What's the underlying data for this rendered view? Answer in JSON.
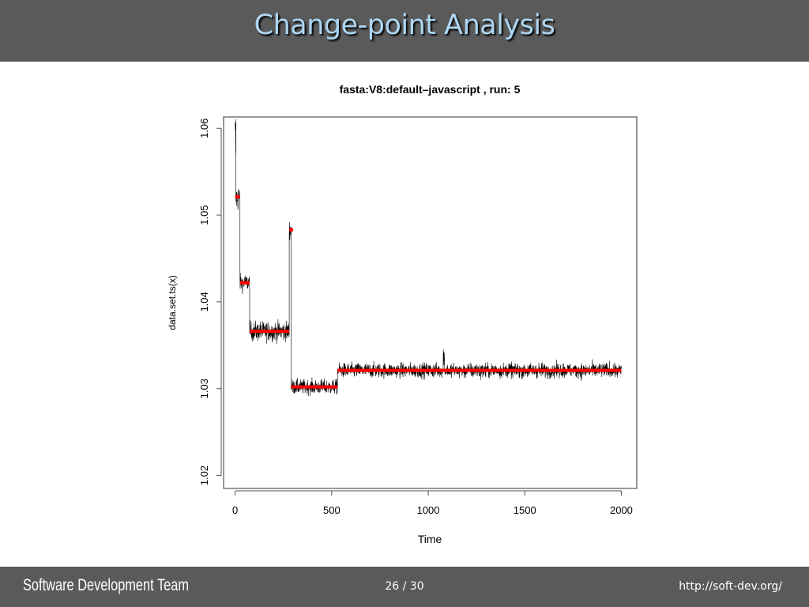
{
  "slide": {
    "title": "Change-point Analysis"
  },
  "footer": {
    "team": "Software Development Team",
    "page": "26 / 30",
    "url": "http://soft-dev.org/"
  },
  "colors": {
    "bar": "#5a5a5a",
    "title": "#aed6f1",
    "series": "#000000",
    "changepoint_means": "#ff0000"
  },
  "chart_data": {
    "type": "line",
    "title": "fasta:V8:default–javascript , run: 5",
    "xlabel": "Time",
    "ylabel": "data.set.ts(x)",
    "xlim": [
      -60,
      2080
    ],
    "ylim": [
      1.0185,
      1.0613
    ],
    "x_ticks": [
      0,
      500,
      1000,
      1500,
      2000
    ],
    "x_tick_labels": [
      "0",
      "500",
      "1000",
      "1500",
      "2000"
    ],
    "y_ticks": [
      1.02,
      1.03,
      1.04,
      1.05,
      1.06
    ],
    "y_tick_labels": [
      "1.02",
      "1.03",
      "1.04",
      "1.05",
      "1.06"
    ],
    "grid": false,
    "series": [
      {
        "style": "noisy time series (black line)",
        "segments": [
          {
            "x_start": 0,
            "x_end": 4,
            "mean": 1.058,
            "noise": 0.0035
          },
          {
            "x_start": 4,
            "x_end": 25,
            "mean": 1.052,
            "noise": 0.0012
          },
          {
            "x_start": 25,
            "x_end": 75,
            "mean": 1.0422,
            "noise": 0.0007
          },
          {
            "x_start": 75,
            "x_end": 280,
            "mean": 1.0366,
            "noise": 0.0008
          },
          {
            "x_start": 280,
            "x_end": 290,
            "mean": 1.0483,
            "noise": 0.0008
          },
          {
            "x_start": 290,
            "x_end": 530,
            "mean": 1.0302,
            "noise": 0.0006
          },
          {
            "x_start": 530,
            "x_end": 2000,
            "mean": 1.0321,
            "noise": 0.0006
          }
        ]
      }
    ],
    "changepoint_means": [
      {
        "x_start": 0,
        "x_end": 25,
        "y": 1.0521
      },
      {
        "x_start": 25,
        "x_end": 75,
        "y": 1.0422
      },
      {
        "x_start": 75,
        "x_end": 280,
        "y": 1.0366
      },
      {
        "x_start": 280,
        "x_end": 290,
        "y": 1.0483
      },
      {
        "x_start": 290,
        "x_end": 530,
        "y": 1.0302
      },
      {
        "x_start": 530,
        "x_end": 2000,
        "y": 1.0321
      }
    ]
  }
}
